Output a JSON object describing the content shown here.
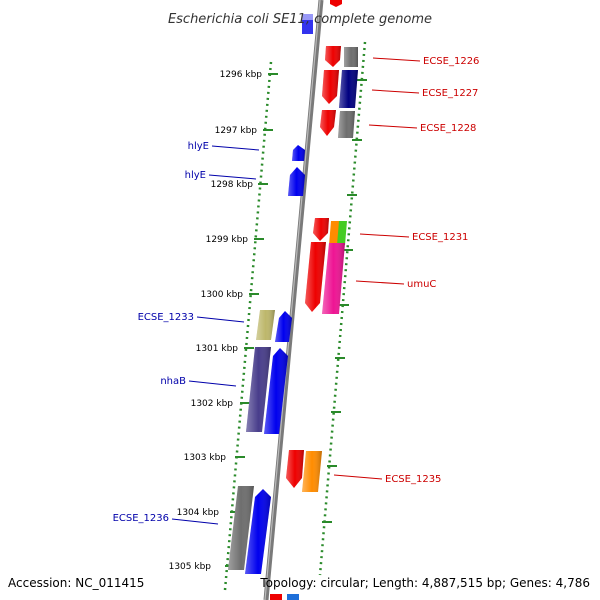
{
  "title": "Escherichia coli SE11, complete genome",
  "footer": {
    "accession": "Accession: NC_011415",
    "topology": "Topology: circular; Length: 4,887,515 bp; Genes: 4,786"
  },
  "colors": {
    "background": "#ffffff",
    "backbone": "#808080",
    "tick": "#2a8a2a",
    "forward_label": "#0000aa",
    "reverse_label": "#cc0000"
  },
  "ruler": {
    "unit": "kbp",
    "labels": [
      "1296 kbp",
      "1297 kbp",
      "1298 kbp",
      "1299 kbp",
      "1300 kbp",
      "1301 kbp",
      "1302 kbp",
      "1303 kbp",
      "1304 kbp",
      "1305 kbp"
    ]
  },
  "forward_gene_labels": [
    "hlyE",
    "hlyE",
    "ECSE_1233",
    "nhaB",
    "ECSE_1236"
  ],
  "reverse_gene_labels": [
    "ECSE_1226",
    "ECSE_1227",
    "ECSE_1228",
    "ECSE_1231",
    "umuC",
    "ECSE_1235"
  ],
  "gene_colors": {
    "red": "#ee0000",
    "blue": "#0000ee",
    "gray": "#6e6e6e",
    "navy": "#000080",
    "orange": "#ff8c00",
    "green": "#44cc22",
    "pink": "#ee1493",
    "khaki": "#bdb76b",
    "slate": "#483d8b"
  }
}
